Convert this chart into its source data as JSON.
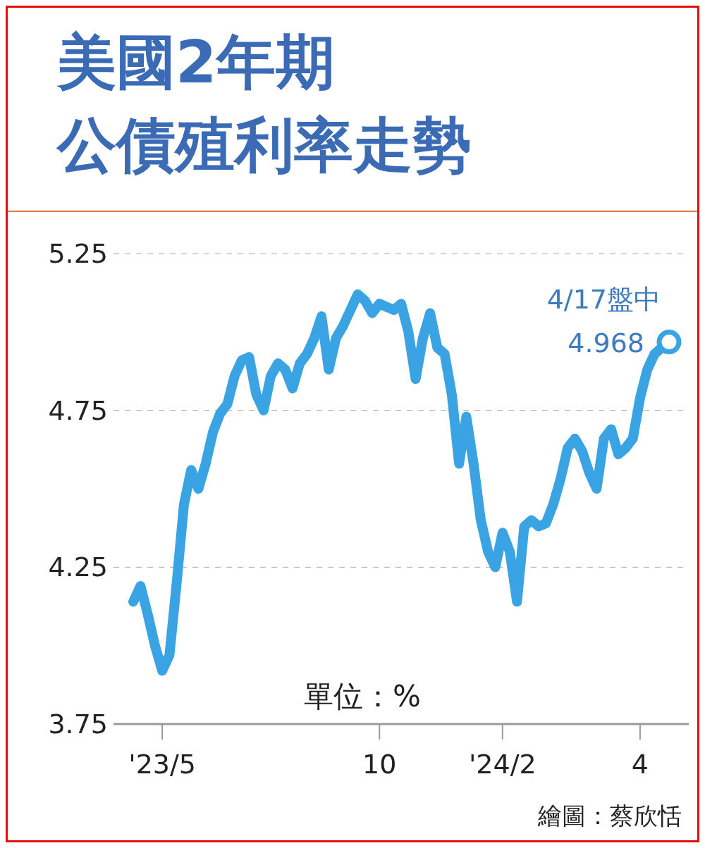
{
  "chart_data": {
    "type": "line",
    "title": "美國2年期",
    "subtitle": "公債殖利率走勢",
    "categories": [
      null,
      null,
      null,
      null,
      "'23/5",
      null,
      null,
      null,
      null,
      null,
      null,
      null,
      null,
      null,
      null,
      null,
      null,
      null,
      null,
      null,
      null,
      null,
      null,
      null,
      null,
      null,
      null,
      null,
      null,
      null,
      null,
      null,
      null,
      null,
      "10",
      null,
      null,
      null,
      null,
      null,
      null,
      null,
      null,
      null,
      null,
      null,
      null,
      null,
      null,
      null,
      null,
      "'24/2",
      null,
      null,
      null,
      null,
      null,
      null,
      null,
      null,
      null,
      null,
      null,
      null,
      null,
      null,
      null,
      null,
      null,
      null,
      "4",
      null,
      null,
      null,
      null
    ],
    "series": [
      {
        "color": "#3aa3e3",
        "values": [
          4.14,
          4.19,
          4.1,
          4.0,
          3.92,
          3.97,
          4.2,
          4.45,
          4.56,
          4.5,
          4.58,
          4.68,
          4.74,
          4.77,
          4.86,
          4.91,
          4.92,
          4.8,
          4.75,
          4.86,
          4.9,
          4.88,
          4.82,
          4.9,
          4.93,
          4.98,
          5.05,
          4.88,
          4.98,
          5.02,
          5.07,
          5.12,
          5.1,
          5.06,
          5.09,
          5.08,
          5.07,
          5.09,
          5.0,
          4.85,
          4.98,
          5.06,
          4.95,
          4.93,
          4.8,
          4.58,
          4.73,
          4.58,
          4.4,
          4.3,
          4.25,
          4.36,
          4.3,
          4.14,
          4.38,
          4.4,
          4.38,
          4.39,
          4.45,
          4.53,
          4.63,
          4.66,
          4.62,
          4.55,
          4.5,
          4.66,
          4.69,
          4.61,
          4.63,
          4.66,
          4.79,
          4.88,
          4.93,
          4.95,
          4.968
        ],
        "value_labels": [
          null,
          null,
          null,
          null,
          null,
          null,
          null,
          null,
          null,
          null,
          null,
          null,
          null,
          null,
          null,
          null,
          null,
          null,
          null,
          null,
          null,
          null,
          null,
          null,
          null,
          null,
          null,
          null,
          null,
          null,
          null,
          null,
          null,
          null,
          null,
          null,
          null,
          null,
          null,
          null,
          null,
          null,
          null,
          null,
          null,
          null,
          null,
          null,
          null,
          null,
          null,
          null,
          null,
          null,
          null,
          null,
          null,
          null,
          null,
          null,
          null,
          null,
          null,
          null,
          null,
          null,
          null,
          null,
          null,
          null,
          null,
          null,
          null,
          null,
          "4.968"
        ]
      }
    ],
    "ylim": [
      3.75,
      5.25
    ],
    "yticks": [
      3.75,
      4.25,
      4.75,
      5.25
    ],
    "grid": "y",
    "line_style": "solid",
    "annotations": [
      "4/17盤中",
      "單位：%",
      "繪圖：蔡欣恬"
    ]
  }
}
